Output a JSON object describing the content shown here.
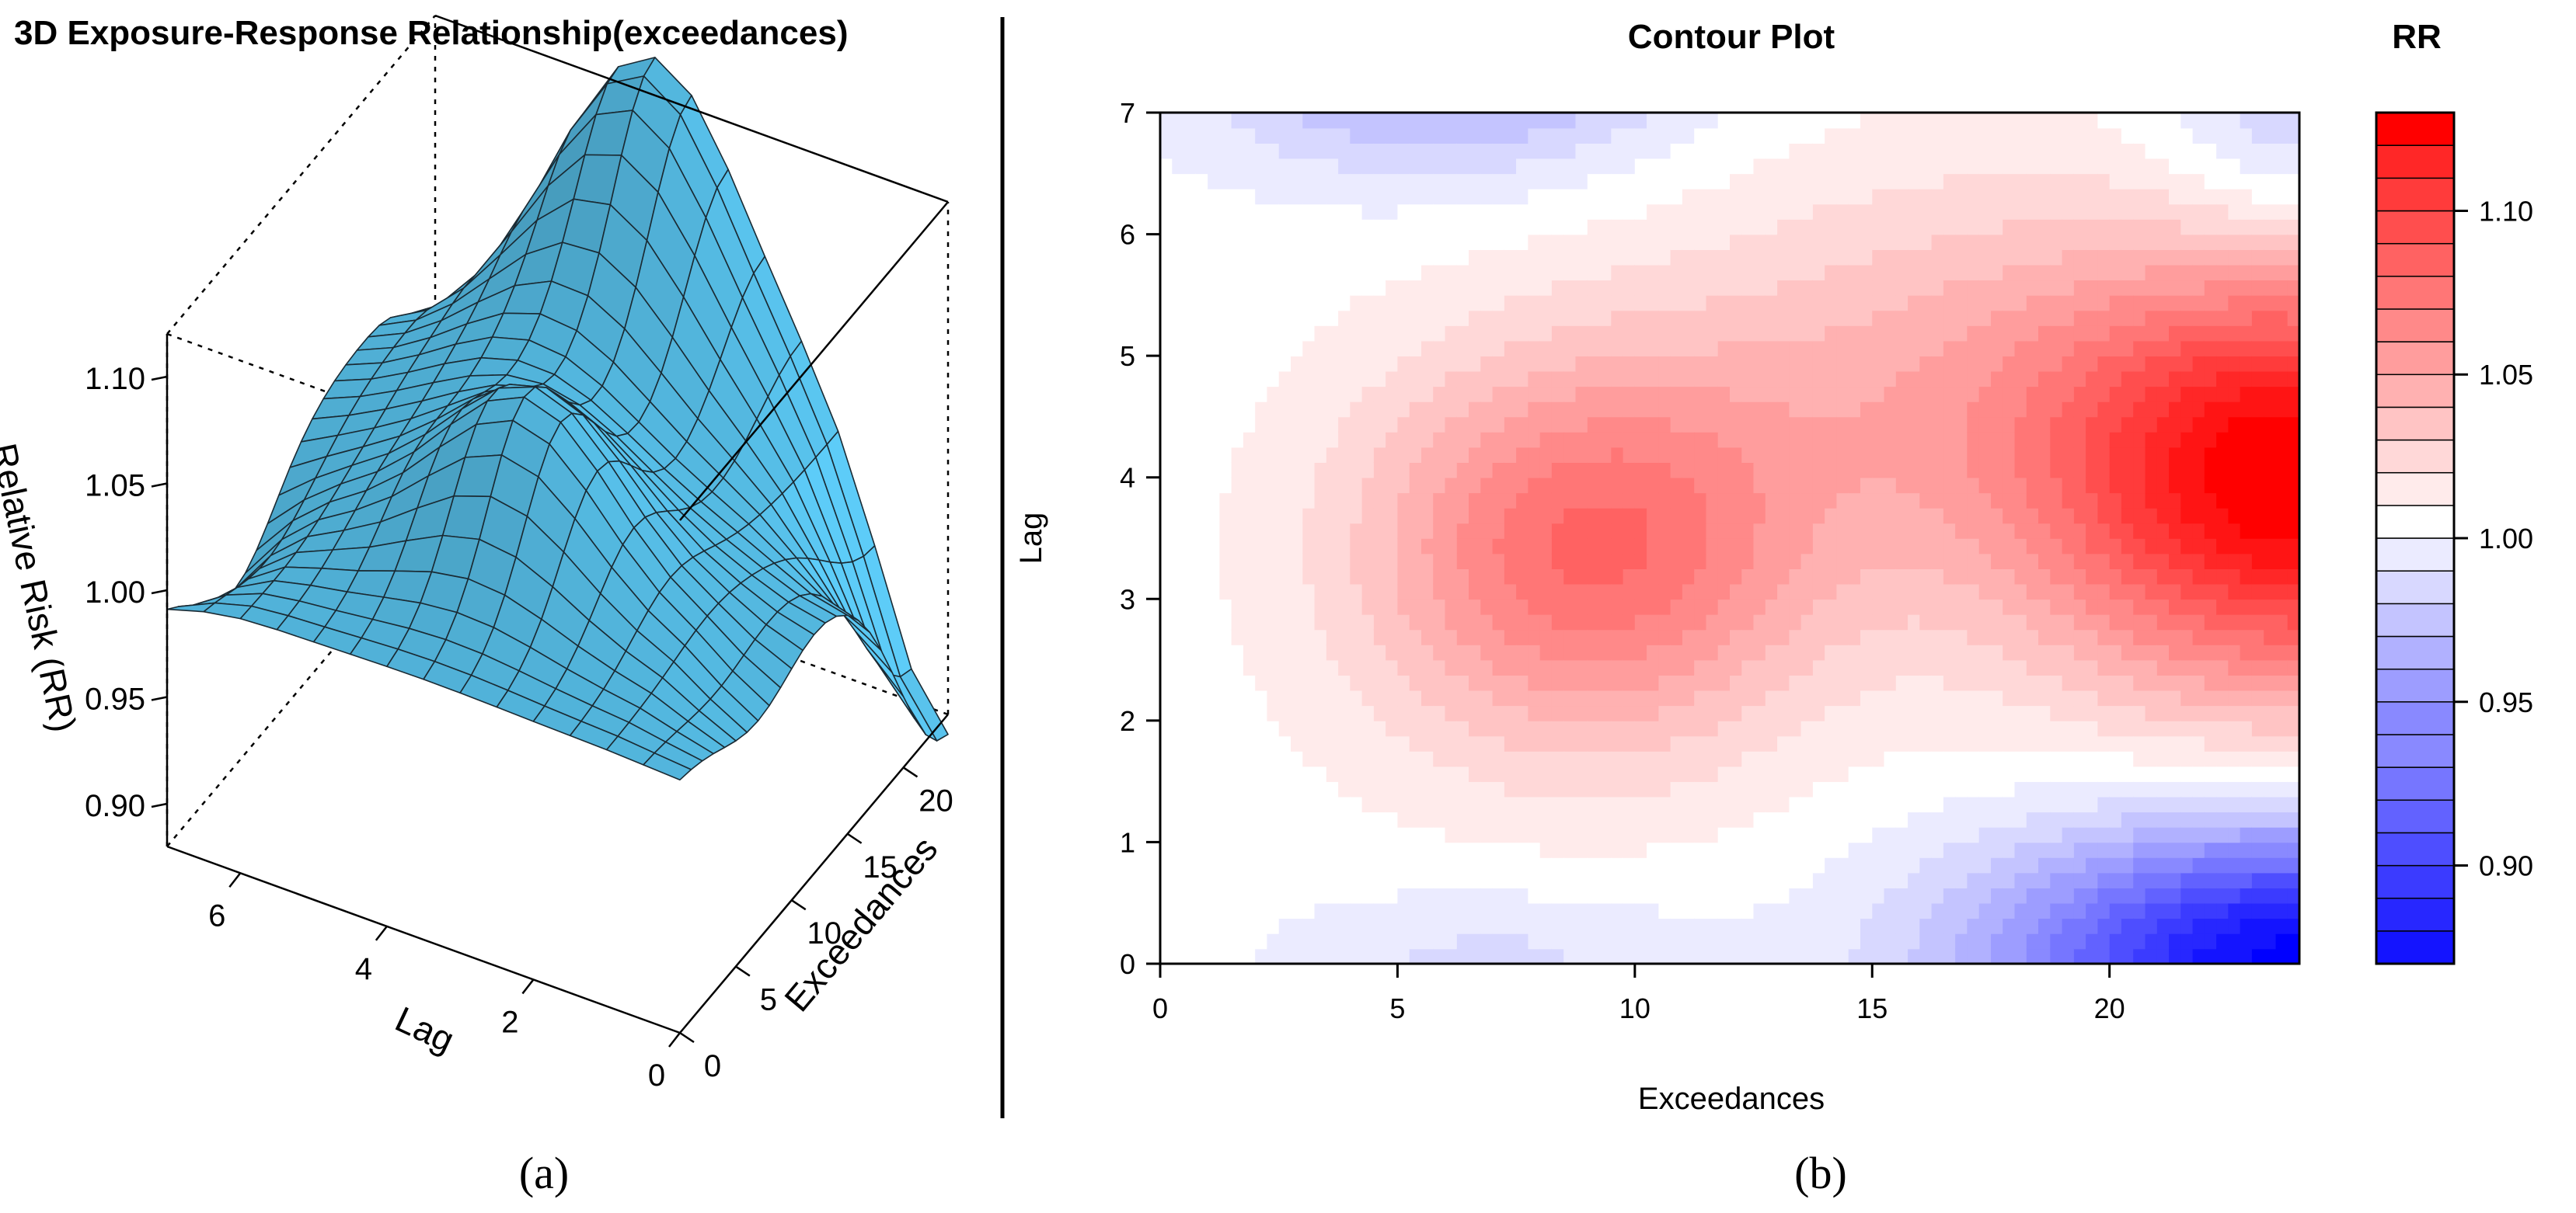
{
  "chart_data": [
    {
      "type": "surface",
      "panel": "(a)",
      "title": "3D Exposure-Response Relationship(exceedances)",
      "xlabel": "Exceedances",
      "ylabel": "Lag",
      "zlabel": "Relative Risk (RR)",
      "xlim": [
        0,
        24
      ],
      "ylim": [
        0,
        7
      ],
      "zlim": [
        0.88,
        1.12
      ],
      "x_ticks": [
        "0",
        "5",
        "10",
        "15",
        "20"
      ],
      "y_ticks": [
        "0",
        "2",
        "4",
        "6"
      ],
      "z_ticks": [
        "0.90",
        "0.95",
        "1.00",
        "1.05",
        "1.10"
      ],
      "surface_color": "#56bde6",
      "peak": {
        "exceedances": 24,
        "lag": 4,
        "rr": 1.13
      },
      "minimum": {
        "exceedances": 24,
        "lag": 0,
        "rr": 0.87
      }
    },
    {
      "type": "contour",
      "panel": "(b)",
      "title": "Contour Plot",
      "xlabel": "Exceedances",
      "ylabel": "Lag",
      "xlim": [
        0,
        24
      ],
      "ylim": [
        0,
        7
      ],
      "x_ticks": [
        "0",
        "5",
        "10",
        "15",
        "20"
      ],
      "y_ticks": [
        "0",
        "1",
        "2",
        "3",
        "4",
        "5",
        "6",
        "7"
      ],
      "legend_title": "RR",
      "legend_ticks": [
        "0.90",
        "0.95",
        "1.00",
        "1.05",
        "1.10"
      ],
      "legend_range": [
        0.87,
        1.13
      ],
      "color_low": "#0000ff",
      "color_mid": "#ffffff",
      "color_high": "#ff0000",
      "level_step": 0.01
    }
  ],
  "captions": {
    "a": "(a)",
    "b": "(b)"
  }
}
